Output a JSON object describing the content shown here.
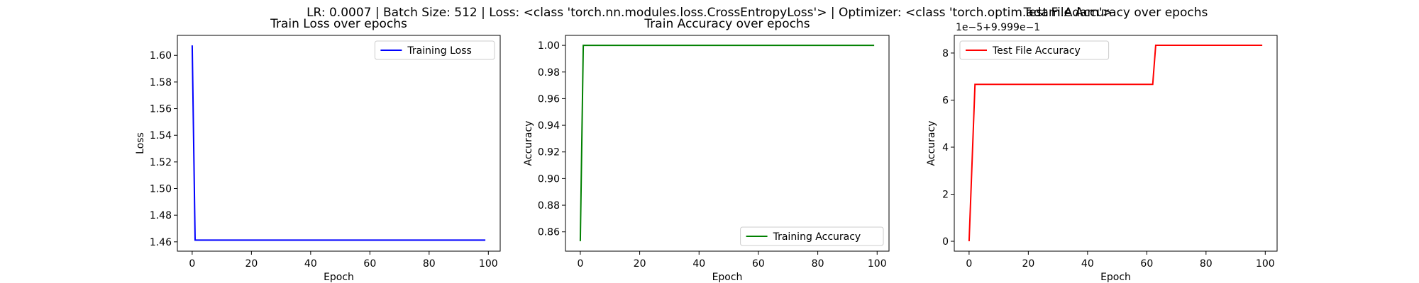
{
  "suptitle": "LR: 0.0007 | Batch Size: 512 | Loss: <class 'torch.nn.modules.loss.CrossEntropyLoss'> | Optimizer: <class 'torch.optim.adam.Adam'>",
  "chart_data": [
    {
      "type": "line",
      "title": "Train Loss over epochs",
      "xlabel": "Epoch",
      "ylabel": "Loss",
      "xlim": [
        -5,
        104
      ],
      "ylim": [
        1.453,
        1.615
      ],
      "xticks": [
        0,
        20,
        40,
        60,
        80,
        100
      ],
      "yticks": [
        1.46,
        1.48,
        1.5,
        1.52,
        1.54,
        1.56,
        1.58,
        1.6
      ],
      "ytick_labels": [
        "1.46",
        "1.48",
        "1.50",
        "1.52",
        "1.54",
        "1.56",
        "1.58",
        "1.60"
      ],
      "offset_text": "",
      "legend_position": "upper-right",
      "series": [
        {
          "name": "Training Loss",
          "color": "#0000ff",
          "points": [
            [
              0,
              1.6075
            ],
            [
              1,
              1.4613
            ],
            [
              99,
              1.4613
            ]
          ]
        }
      ]
    },
    {
      "type": "line",
      "title": "Train Accuracy over epochs",
      "xlabel": "Epoch",
      "ylabel": "Accuracy",
      "xlim": [
        -5,
        104
      ],
      "ylim": [
        0.8455,
        1.0075
      ],
      "xticks": [
        0,
        20,
        40,
        60,
        80,
        100
      ],
      "yticks": [
        0.86,
        0.88,
        0.9,
        0.92,
        0.94,
        0.96,
        0.98,
        1.0
      ],
      "ytick_labels": [
        "0.86",
        "0.88",
        "0.90",
        "0.92",
        "0.94",
        "0.96",
        "0.98",
        "1.00"
      ],
      "offset_text": "",
      "legend_position": "lower-right",
      "series": [
        {
          "name": "Training Accuracy",
          "color": "#008000",
          "points": [
            [
              0,
              0.853
            ],
            [
              1,
              1.0
            ],
            [
              99,
              1.0
            ]
          ]
        }
      ]
    },
    {
      "type": "line",
      "title": "Test File Accuracy over epochs",
      "xlabel": "Epoch",
      "ylabel": "Accuracy",
      "xlim": [
        -5,
        104
      ],
      "ylim": [
        -0.42,
        8.75
      ],
      "xticks": [
        0,
        20,
        40,
        60,
        80,
        100
      ],
      "yticks": [
        0,
        2,
        4,
        6,
        8
      ],
      "ytick_labels": [
        "0",
        "2",
        "4",
        "6",
        "8"
      ],
      "offset_text": "1e−5+9.999e−1",
      "legend_position": "upper-left",
      "series": [
        {
          "name": "Test File Accuracy",
          "color": "#ff0000",
          "points": [
            [
              0,
              0
            ],
            [
              2,
              6.67
            ],
            [
              62,
              6.67
            ],
            [
              63,
              8.33
            ],
            [
              99,
              8.33
            ]
          ]
        }
      ]
    }
  ]
}
